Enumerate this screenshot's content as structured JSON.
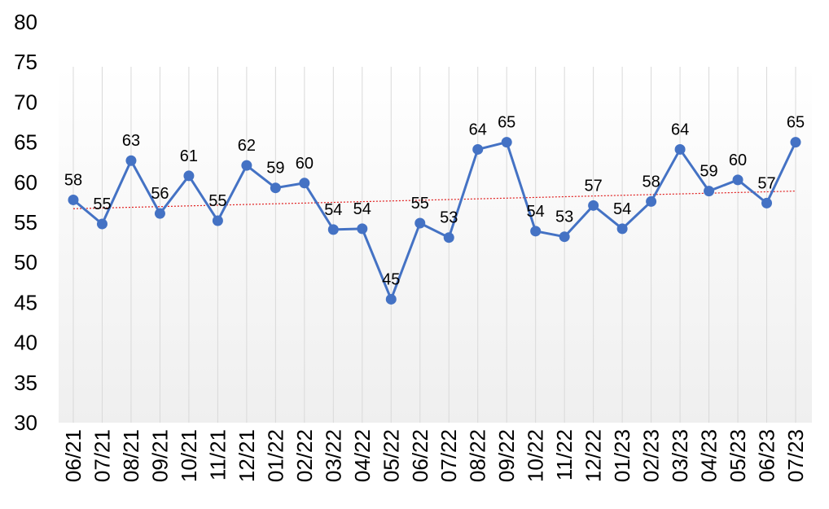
{
  "chart_data": {
    "type": "line",
    "title": "",
    "xlabel": "",
    "ylabel": "",
    "ylim": [
      30,
      80
    ],
    "yticks": [
      "30",
      "35",
      "40",
      "45",
      "50",
      "55",
      "60",
      "65",
      "70",
      "75",
      "80"
    ],
    "grid": "vertical gridlines at each category",
    "legend": "none",
    "categories": [
      "06/21",
      "07/21",
      "08/21",
      "09/21",
      "10/21",
      "11/21",
      "12/21",
      "01/22",
      "02/22",
      "03/22",
      "04/22",
      "05/22",
      "06/22",
      "07/22",
      "08/22",
      "09/22",
      "10/22",
      "11/22",
      "12/22",
      "01/23",
      "02/23",
      "03/23",
      "04/23",
      "05/23",
      "06/23",
      "07/23"
    ],
    "series": [
      {
        "values": [
          57.8,
          54.8,
          62.7,
          56.1,
          60.8,
          55.2,
          62.1,
          59.3,
          59.9,
          54.1,
          54.2,
          45.4,
          54.9,
          53.1,
          64.1,
          65.0,
          53.9,
          53.2,
          57.1,
          54.2,
          57.6,
          64.1,
          58.9,
          60.3,
          57.4,
          65.0
        ],
        "labels": [
          "58",
          "55",
          "63",
          "56",
          "61",
          "55",
          "62",
          "59",
          "60",
          "54",
          "54",
          "45",
          "55",
          "53",
          "64",
          "65",
          "54",
          "53",
          "57",
          "54",
          "58",
          "64",
          "59",
          "60",
          "57",
          "65"
        ],
        "color": "#4472C4"
      }
    ],
    "trendline": {
      "type": "linear",
      "start": 56.7,
      "end": 58.9,
      "color": "#E02020",
      "style": "dotted"
    }
  }
}
